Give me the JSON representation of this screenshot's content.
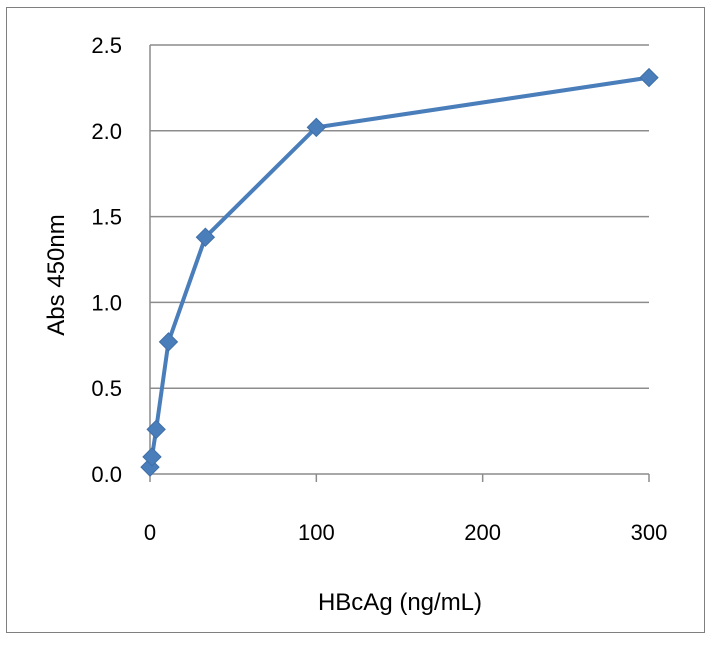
{
  "chart_data": {
    "type": "line",
    "title": "",
    "xlabel": "HBcAg (ng/mL)",
    "ylabel": "Abs 450nm",
    "xlim": [
      0,
      300
    ],
    "ylim": [
      0,
      2.5
    ],
    "xticks": [
      0,
      100,
      200,
      300
    ],
    "xtick_labels": [
      "0",
      "100",
      "200",
      "300"
    ],
    "yticks": [
      0,
      0.5,
      1.0,
      1.5,
      2.0,
      2.5
    ],
    "ytick_labels": [
      "0.0",
      "0.5",
      "1.0",
      "1.5",
      "2.0",
      "2.5"
    ],
    "grid": "horizontal",
    "legend": "none",
    "series": [
      {
        "color": "#4a7ebb",
        "marker": "diamond",
        "x": [
          0,
          1.2,
          3.7,
          11.1,
          33.3,
          100,
          300
        ],
        "y": [
          0.04,
          0.1,
          0.26,
          0.77,
          1.38,
          2.02,
          2.31
        ]
      }
    ]
  }
}
